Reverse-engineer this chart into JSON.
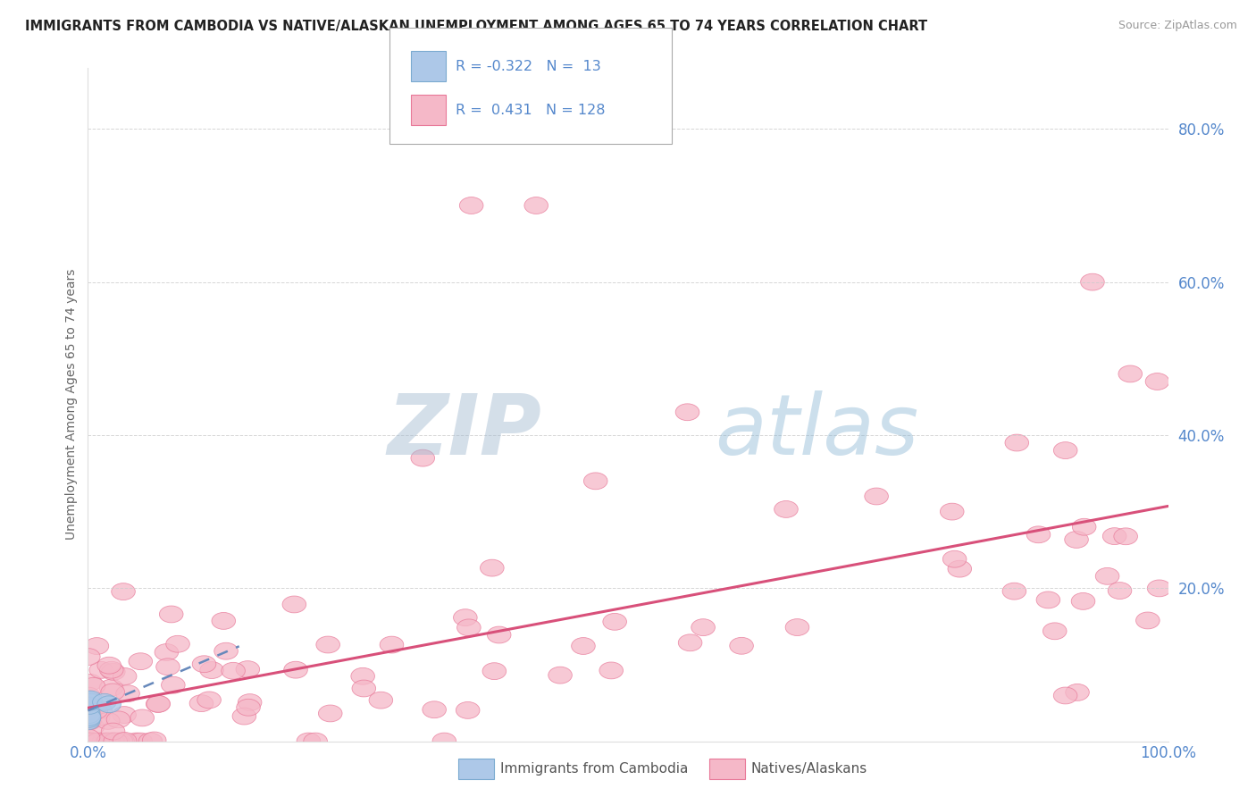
{
  "title": "IMMIGRANTS FROM CAMBODIA VS NATIVE/ALASKAN UNEMPLOYMENT AMONG AGES 65 TO 74 YEARS CORRELATION CHART",
  "source": "Source: ZipAtlas.com",
  "ylabel": "Unemployment Among Ages 65 to 74 years",
  "xlim": [
    0,
    1.0
  ],
  "ylim": [
    0,
    0.88
  ],
  "ytick_positions": [
    0.0,
    0.2,
    0.4,
    0.6,
    0.8
  ],
  "yticklabels_right": [
    "",
    "20.0%",
    "40.0%",
    "60.0%",
    "80.0%"
  ],
  "color_blue_fill": "#adc8e8",
  "color_blue_edge": "#7aaad0",
  "color_pink_fill": "#f5b8c8",
  "color_pink_edge": "#e87898",
  "color_pink_line": "#d8507a",
  "color_blue_line": "#6688bb",
  "color_label_blue": "#5588cc",
  "background_color": "#ffffff",
  "grid_color": "#cccccc",
  "watermark_color": "#c5d8ee",
  "watermark_alpha": 0.6,
  "r_cam": -0.322,
  "n_cam": 13,
  "r_nat": 0.431,
  "n_nat": 128
}
